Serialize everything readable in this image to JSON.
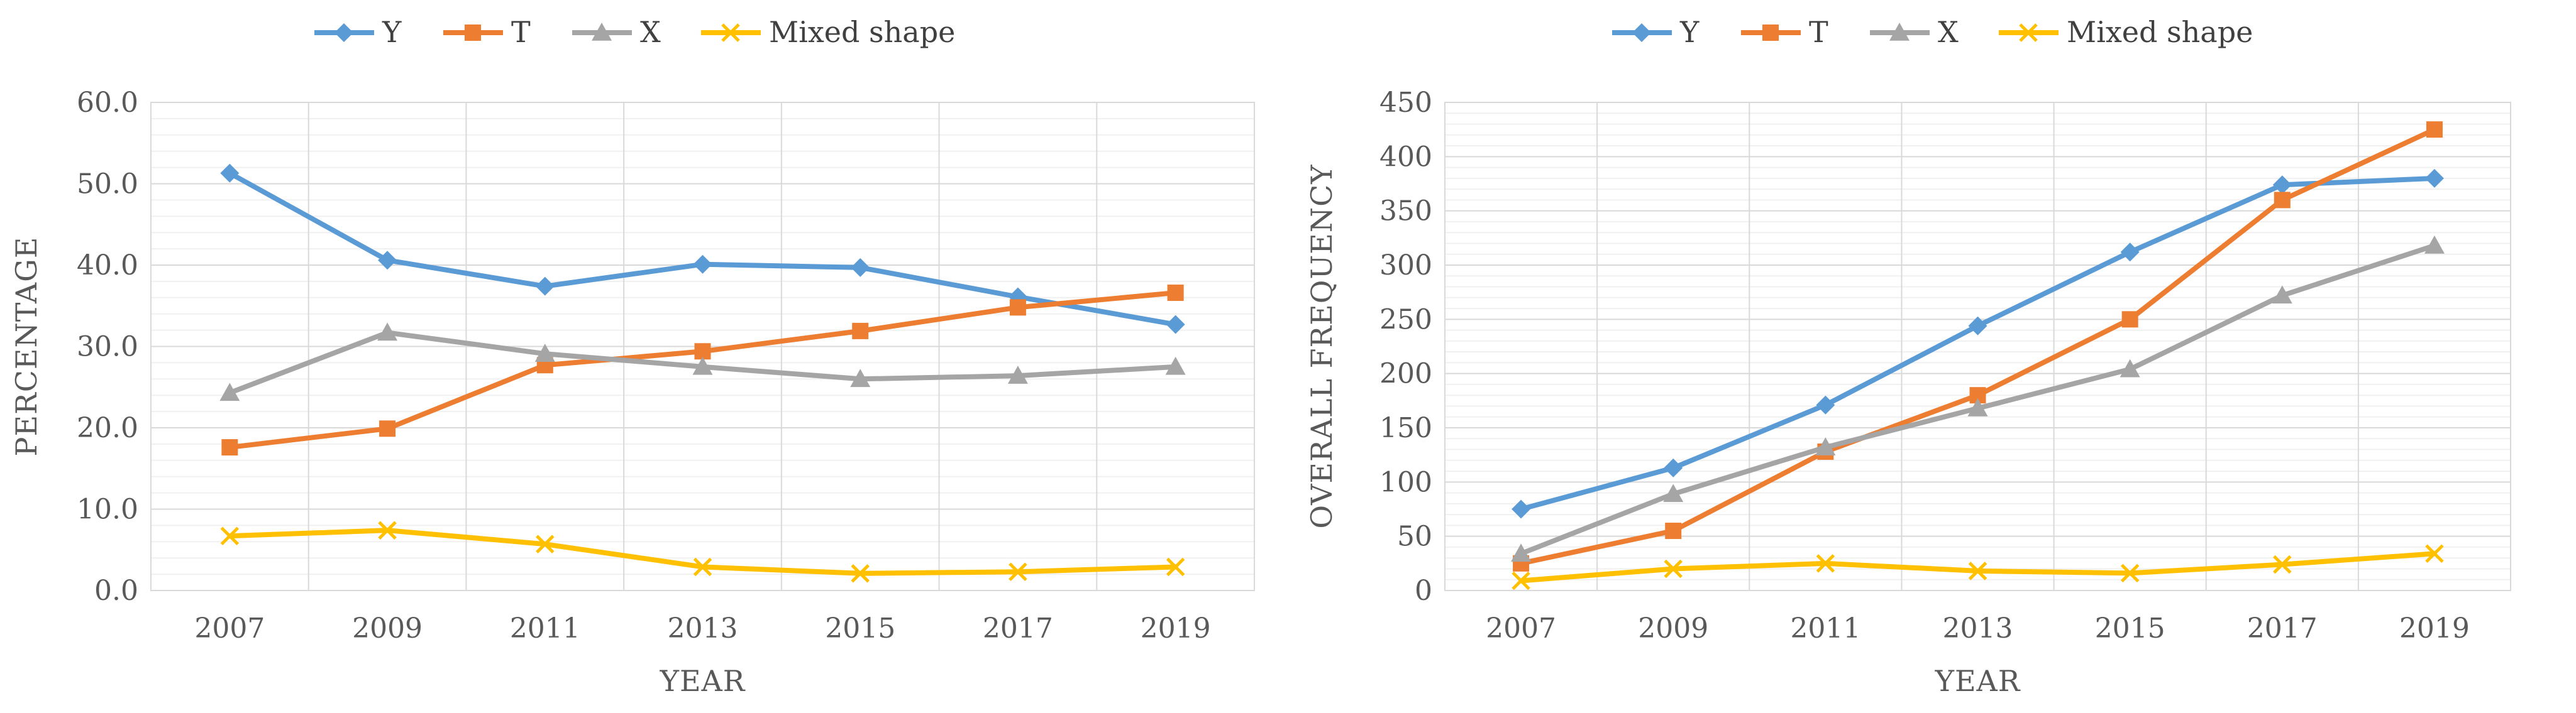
{
  "chart_data": [
    {
      "type": "line",
      "title": "",
      "xlabel": "YEAR",
      "ylabel": "PERCENTAGE",
      "categories": [
        "2007",
        "2009",
        "2011",
        "2013",
        "2015",
        "2017",
        "2019"
      ],
      "ylim": [
        0,
        60
      ],
      "yticks": [
        "0.0",
        "10.0",
        "20.0",
        "30.0",
        "40.0",
        "50.0",
        "60.0"
      ],
      "grid": true,
      "legend_position": "top",
      "series": [
        {
          "name": "Y",
          "marker": "diamond",
          "color": "#5B9BD5",
          "values": [
            51.3,
            40.6,
            37.4,
            40.1,
            39.7,
            36.1,
            32.7
          ]
        },
        {
          "name": "T",
          "marker": "square",
          "color": "#ED7D31",
          "values": [
            17.6,
            19.9,
            27.7,
            29.4,
            31.9,
            34.8,
            36.6
          ]
        },
        {
          "name": "X",
          "marker": "triangle",
          "color": "#A5A5A5",
          "values": [
            24.3,
            31.7,
            29.1,
            27.5,
            26.0,
            26.4,
            27.5
          ]
        },
        {
          "name": "Mixed shape",
          "marker": "x",
          "color": "#FFC000",
          "values": [
            6.7,
            7.4,
            5.7,
            2.9,
            2.1,
            2.3,
            2.9
          ]
        }
      ]
    },
    {
      "type": "line",
      "title": "",
      "xlabel": "YEAR",
      "ylabel": "OVERALL  FREQUENCY",
      "categories": [
        "2007",
        "2009",
        "2011",
        "2013",
        "2015",
        "2017",
        "2019"
      ],
      "ylim": [
        0,
        450
      ],
      "yticks": [
        "0",
        "50",
        "100",
        "150",
        "200",
        "250",
        "300",
        "350",
        "400",
        "450"
      ],
      "grid": true,
      "legend_position": "top",
      "series": [
        {
          "name": "Y",
          "marker": "diamond",
          "color": "#5B9BD5",
          "values": [
            75,
            113,
            171,
            244,
            312,
            374,
            380
          ]
        },
        {
          "name": "T",
          "marker": "square",
          "color": "#ED7D31",
          "values": [
            25,
            55,
            128,
            180,
            250,
            360,
            425
          ]
        },
        {
          "name": "X",
          "marker": "triangle",
          "color": "#A5A5A5",
          "values": [
            34,
            89,
            132,
            168,
            204,
            272,
            318
          ]
        },
        {
          "name": "Mixed shape",
          "marker": "x",
          "color": "#FFC000",
          "values": [
            9,
            20,
            25,
            18,
            16,
            24,
            34
          ]
        }
      ]
    }
  ]
}
